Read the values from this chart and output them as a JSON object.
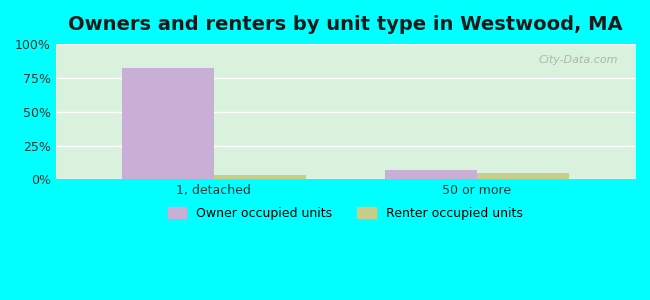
{
  "title": "Owners and renters by unit type in Westwood, MA",
  "categories": [
    "1, detached",
    "50 or more"
  ],
  "owner_values": [
    82,
    7
  ],
  "renter_values": [
    3,
    5
  ],
  "owner_color": "#c9aed6",
  "renter_color": "#c8cd8a",
  "background_color": "#00ffff",
  "plot_bg_top": "#e8f5e9",
  "plot_bg_bottom": "#f0faf0",
  "ylim": [
    0,
    100
  ],
  "yticks": [
    0,
    25,
    50,
    75,
    100
  ],
  "ytick_labels": [
    "0%",
    "25%",
    "50%",
    "75%",
    "100%"
  ],
  "title_fontsize": 14,
  "bar_width": 0.35,
  "legend_owner": "Owner occupied units",
  "legend_renter": "Renter occupied units",
  "watermark": "City-Data.com"
}
